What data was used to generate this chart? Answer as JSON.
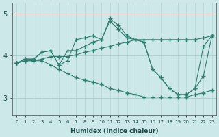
{
  "xlabel": "Humidex (Indice chaleur)",
  "x": [
    0,
    1,
    2,
    3,
    4,
    5,
    6,
    7,
    8,
    9,
    10,
    11,
    12,
    13,
    14,
    15,
    16,
    17,
    18,
    19,
    20,
    21,
    22,
    23
  ],
  "line1": [
    3.82,
    3.92,
    3.92,
    4.08,
    4.12,
    3.78,
    3.88,
    4.38,
    4.42,
    4.47,
    4.38,
    4.88,
    4.72,
    4.47,
    4.38,
    4.32,
    3.68,
    3.48,
    3.22,
    3.08,
    3.08,
    3.22,
    3.52,
    4.47
  ],
  "line2": [
    3.82,
    3.92,
    3.92,
    4.08,
    4.12,
    3.78,
    4.12,
    4.12,
    4.22,
    4.32,
    4.38,
    4.82,
    4.62,
    4.42,
    4.38,
    4.32,
    3.68,
    3.48,
    3.22,
    3.08,
    3.08,
    3.22,
    4.22,
    4.47
  ],
  "line3": [
    3.82,
    3.88,
    3.88,
    3.88,
    3.78,
    3.68,
    3.58,
    3.48,
    3.42,
    3.38,
    3.32,
    3.22,
    3.18,
    3.12,
    3.08,
    3.02,
    3.02,
    3.02,
    3.02,
    3.02,
    3.02,
    3.08,
    3.12,
    3.18
  ],
  "line4": [
    3.82,
    3.88,
    3.88,
    3.92,
    3.98,
    3.98,
    3.98,
    4.02,
    4.08,
    4.12,
    4.18,
    4.22,
    4.28,
    4.32,
    4.38,
    4.38,
    4.38,
    4.38,
    4.38,
    4.38,
    4.38,
    4.38,
    4.42,
    4.47
  ],
  "line_color": "#2e7d6e",
  "bg_color": "#cce8e8",
  "hgrid_color": "#e8b0b0",
  "vgrid_color": "#b8d8d8",
  "ylim": [
    2.6,
    5.25
  ],
  "yticks": [
    3,
    4,
    5
  ],
  "xlim": [
    -0.5,
    23.5
  ]
}
